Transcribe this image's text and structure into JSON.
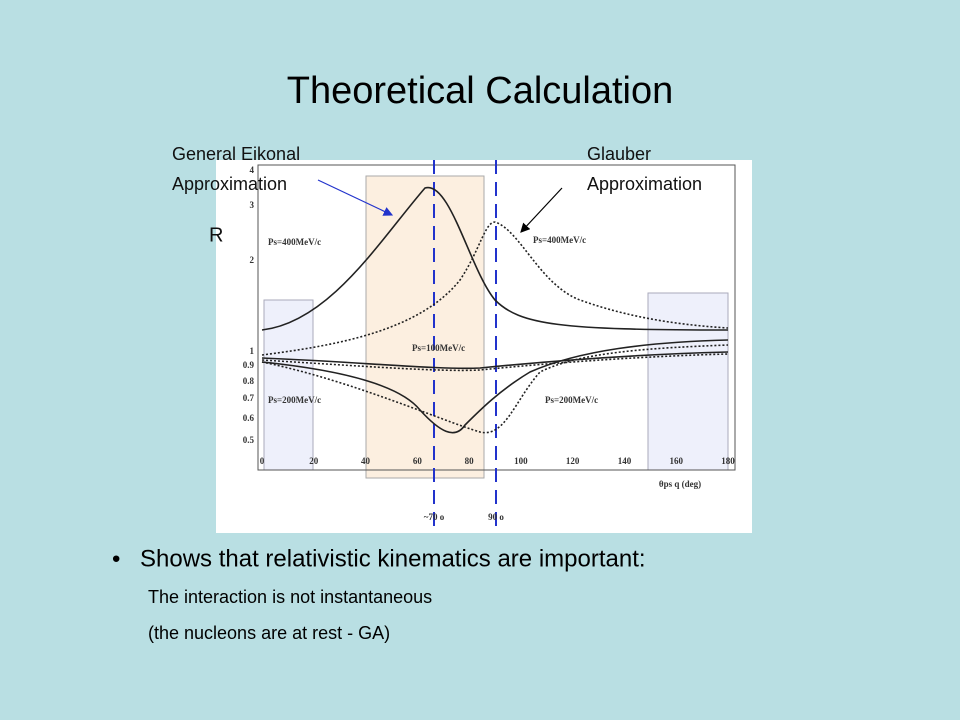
{
  "title": "Theoretical Calculation",
  "figure": {
    "annotations": {
      "eikonal": [
        "General Eikonal",
        "Approximation"
      ],
      "glauber": [
        "Glauber",
        "Approximation"
      ],
      "y_axis": "R"
    },
    "yticks": [
      "4",
      "3",
      "2",
      "1",
      "0.9",
      "0.8",
      "0.7",
      "0.6",
      "0.5"
    ],
    "xticks": [
      "0",
      "20",
      "40",
      "60",
      "80",
      "100",
      "120",
      "140",
      "160",
      "180"
    ],
    "x_axis_label": "θps q (deg)",
    "curve_labels": [
      "Ps=400MeV/c",
      "Ps=400MeV/c",
      "Ps=100MeV/c",
      "Ps=200MeV/c",
      "Ps=200MeV/c"
    ],
    "angle_labels": [
      "~70 o",
      "90 o"
    ]
  },
  "bullet": "Shows that relativistic kinematics are important:",
  "sub_lines": [
    "The interaction is not instantaneous",
    "(the nucleons are at rest - GA)"
  ]
}
